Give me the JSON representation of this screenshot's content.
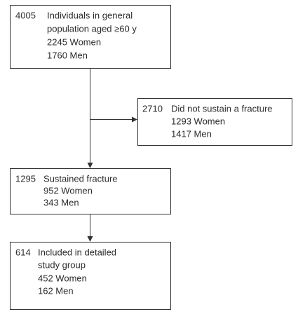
{
  "nodes": [
    {
      "count": 4005,
      "lines": [
        "Individuals in general",
        "population aged ≥60 y",
        "2245 Women",
        "1760 Men"
      ]
    },
    {
      "count": 2710,
      "lines": [
        "Did not sustain a fracture",
        "1293 Women",
        "1417 Men"
      ]
    },
    {
      "count": 1295,
      "lines": [
        "Sustained fracture",
        "952 Women",
        "343 Men"
      ]
    },
    {
      "count": 614,
      "lines": [
        "Included in detailed",
        "study group",
        "452 Women",
        "162 Men"
      ]
    }
  ]
}
